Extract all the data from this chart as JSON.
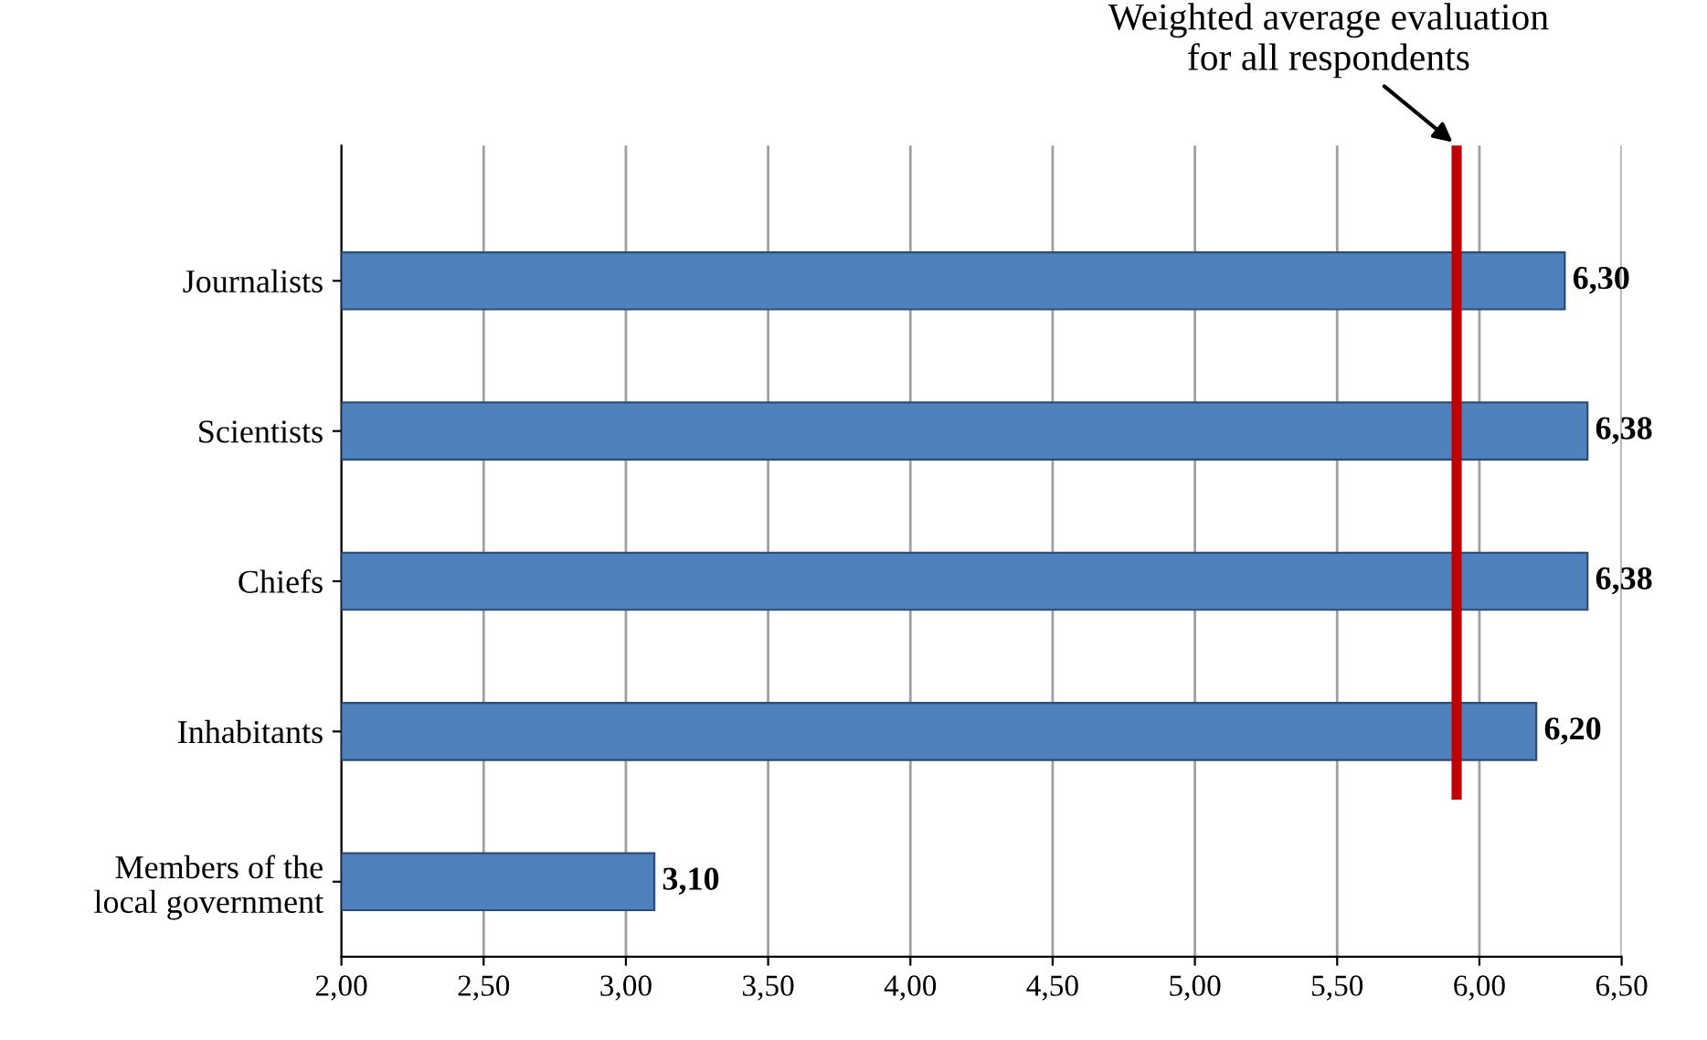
{
  "chart_data": {
    "type": "bar",
    "orientation": "horizontal",
    "categories": [
      "Journalists",
      "Scientists",
      "Chiefs",
      "Inhabitants",
      "Members of the\nlocal government"
    ],
    "values": [
      6.3,
      6.38,
      6.38,
      6.2,
      3.1
    ],
    "value_labels": [
      "6,30",
      "6,38",
      "6,38",
      "6,20",
      "3,10"
    ],
    "color": "#4f81bd",
    "xlim": [
      2.0,
      6.5
    ],
    "xticks": [
      {
        "value": 2.0,
        "label": "2,00"
      },
      {
        "value": 2.5,
        "label": "2,50"
      },
      {
        "value": 3.0,
        "label": "3,00"
      },
      {
        "value": 3.5,
        "label": "3,50"
      },
      {
        "value": 4.0,
        "label": "4,00"
      },
      {
        "value": 4.5,
        "label": "4,50"
      },
      {
        "value": 5.0,
        "label": "5,00"
      },
      {
        "value": 5.5,
        "label": "5,50"
      },
      {
        "value": 6.0,
        "label": "6,00"
      },
      {
        "value": 6.5,
        "label": "6,50"
      }
    ],
    "grid": "x",
    "ref_lines": [
      {
        "axis": "x",
        "value": 5.92,
        "label": "Weighted average evaluation\nfor all respondents",
        "color": "#c00000"
      }
    ]
  }
}
